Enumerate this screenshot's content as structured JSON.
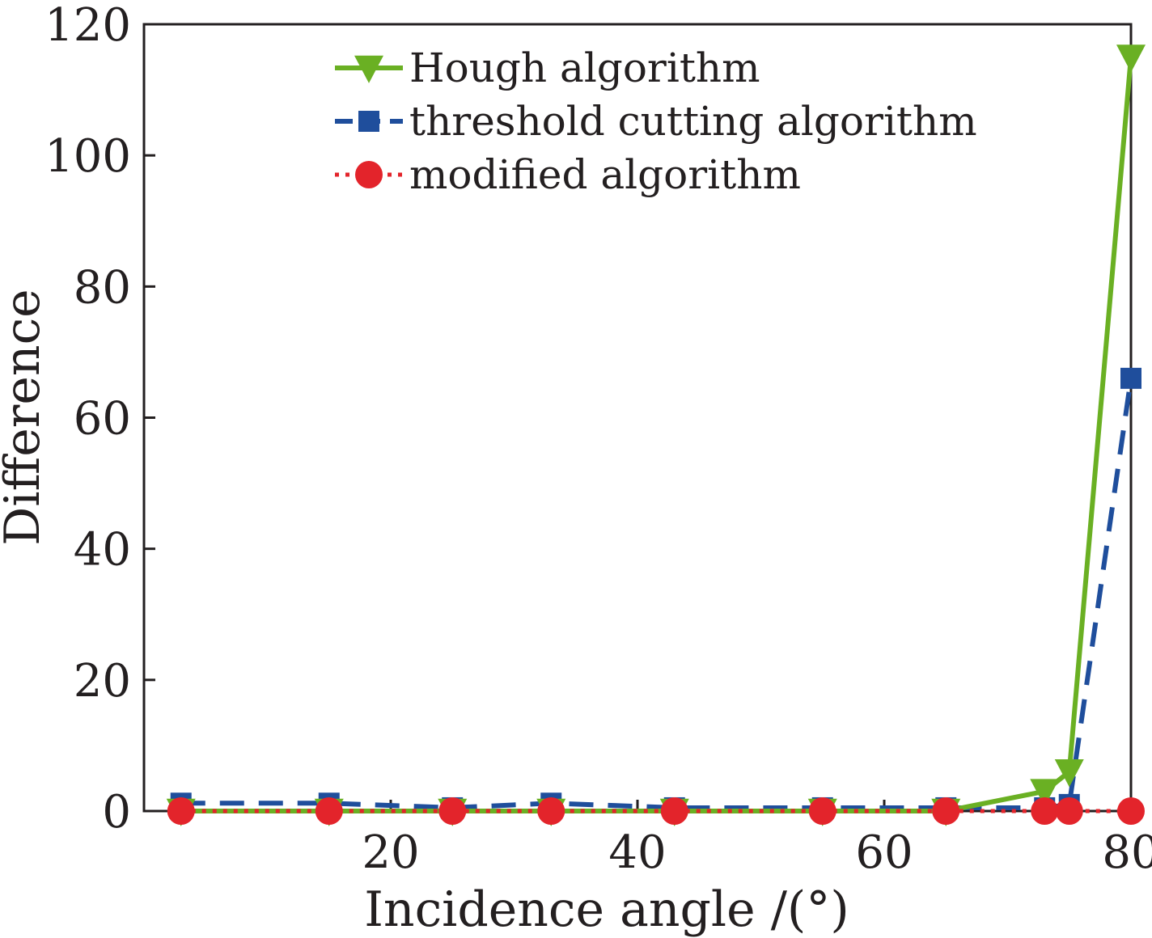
{
  "chart_data": {
    "type": "line",
    "title": "",
    "xlabel": "Incidence angle /(°)",
    "ylabel": "Difference",
    "xlim": [
      0,
      80
    ],
    "ylim": [
      0,
      120
    ],
    "xticks": [
      20,
      40,
      60,
      80
    ],
    "yticks": [
      0,
      20,
      40,
      60,
      80,
      100,
      120
    ],
    "xtick_labels": [
      "20",
      "40",
      "60",
      "80"
    ],
    "ytick_labels": [
      "0",
      "20",
      "40",
      "60",
      "80",
      "100",
      "120"
    ],
    "grid": false,
    "legend_position": "top",
    "series": [
      {
        "name": "Hough algorithm",
        "color": "#6ab023",
        "line_style": "solid",
        "marker": "triangle-down",
        "x": [
          3,
          15,
          25,
          33,
          43,
          55,
          65,
          73,
          75,
          80
        ],
        "y": [
          0,
          0,
          0,
          0,
          0,
          0,
          0,
          3,
          6,
          115
        ]
      },
      {
        "name": "threshold cutting algorithm",
        "color": "#1f4e9c",
        "line_style": "dashed",
        "marker": "square",
        "x": [
          3,
          15,
          25,
          33,
          43,
          55,
          65,
          73,
          75,
          80
        ],
        "y": [
          1.2,
          1.2,
          0.5,
          1.2,
          0.5,
          0.5,
          0.5,
          0.5,
          1,
          66
        ]
      },
      {
        "name": "modified algorithm",
        "color": "#e3242b",
        "line_style": "dotted",
        "marker": "circle",
        "x": [
          3,
          15,
          25,
          33,
          43,
          55,
          65,
          73,
          75,
          80
        ],
        "y": [
          0,
          0,
          0,
          0,
          0,
          0,
          0,
          0,
          0,
          0
        ]
      }
    ]
  }
}
